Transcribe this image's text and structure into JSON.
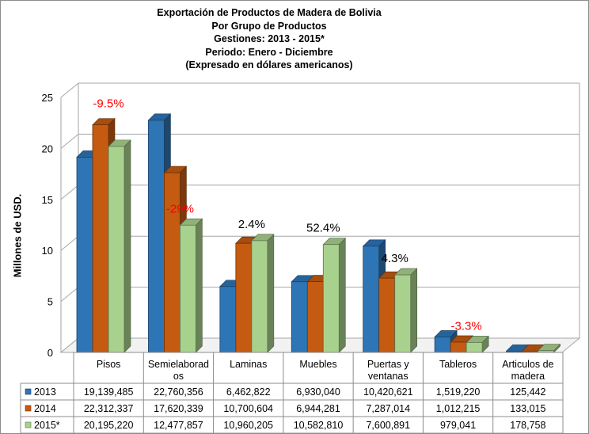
{
  "chart_data": {
    "type": "bar",
    "title_lines": [
      "Exportación de Productos de Madera de Bolivia",
      "Por Grupo de Productos",
      "Gestiones: 2013 - 2015*",
      "Periodo: Enero - Diciembre",
      "(Expresado en dólares americanos)"
    ],
    "ylabel": "Millones de USD.",
    "ylim": [
      0,
      25
    ],
    "yticks": [
      "0",
      "5",
      "10",
      "15",
      "20",
      "25"
    ],
    "grid": true,
    "category_lines": [
      [
        "Pisos"
      ],
      [
        "Semielaborad",
        "os"
      ],
      [
        "Laminas"
      ],
      [
        "Muebles"
      ],
      [
        "Puertas y",
        "ventanas"
      ],
      [
        "Tableros"
      ],
      [
        "Articulos de",
        "madera"
      ]
    ],
    "series": [
      {
        "name": "2013",
        "values": [
          19.139485,
          22.760356,
          6.462822,
          6.93004,
          10.420621,
          1.51922,
          0.125442
        ],
        "labels": [
          "19,139,485",
          "22,760,356",
          "6,462,822",
          "6,930,040",
          "10,420,621",
          "1,519,220",
          "125,442"
        ],
        "color": "#2e75b6"
      },
      {
        "name": "2014",
        "values": [
          22.312337,
          17.620339,
          10.700604,
          6.944281,
          7.287014,
          1.012215,
          0.133015
        ],
        "labels": [
          "22,312,337",
          "17,620,339",
          "10,700,604",
          "6,944,281",
          "7,287,014",
          "1,012,215",
          "133,015"
        ],
        "color": "#c55a11"
      },
      {
        "name": "2015*",
        "values": [
          20.19522,
          12.477857,
          10.960205,
          10.58281,
          7.600891,
          0.979041,
          0.178758
        ],
        "labels": [
          "20,195,220",
          "12,477,857",
          "10,960,205",
          "10,582,810",
          "7,600,891",
          "979,041",
          "178,758"
        ],
        "color": "#a9d18e"
      }
    ],
    "annotations": [
      {
        "text": "-9.5%",
        "category": 0,
        "color": "#ff0000"
      },
      {
        "text": "-29%",
        "category": 1,
        "color": "#ff0000"
      },
      {
        "text": "2.4%",
        "category": 2,
        "color": "#000000"
      },
      {
        "text": "52.4%",
        "category": 3,
        "color": "#000000"
      },
      {
        "text": "4.3%",
        "category": 4,
        "color": "#000000"
      },
      {
        "text": "-3.3%",
        "category": 5,
        "color": "#ff0000"
      }
    ]
  }
}
